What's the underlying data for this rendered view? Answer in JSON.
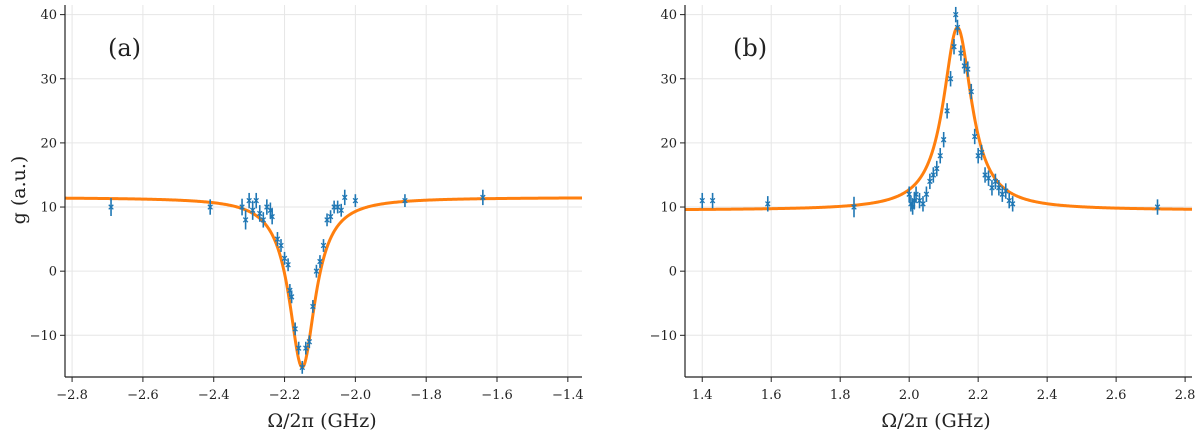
{
  "colors": {
    "data": "#1f77b4",
    "fit": "#ff7f0e"
  },
  "chart_data": [
    {
      "type": "scatter",
      "panel_label": "(a)",
      "xlabel": "Ω/2π (GHz)",
      "ylabel": "g (a.u.)",
      "xlim": [
        -2.82,
        -1.36
      ],
      "ylim": [
        -16.5,
        41.5
      ],
      "xticks": [
        -2.8,
        -2.6,
        -2.4,
        -2.2,
        -2.0,
        -1.8,
        -1.6,
        -1.4
      ],
      "xtick_labels": [
        "−2.8",
        "−2.6",
        "−2.4",
        "−2.2",
        "−2.0",
        "−1.8",
        "−1.6",
        "−1.4"
      ],
      "yticks": [
        -10,
        0,
        10,
        20,
        30,
        40
      ],
      "ytick_labels": [
        "−10",
        "0",
        "10",
        "20",
        "30",
        "40"
      ],
      "grid": true,
      "fit": {
        "shape": "lorentzian-dip",
        "baseline": 11.5,
        "center": -2.15,
        "half_width": 0.045,
        "extremum": -15
      },
      "points": [
        {
          "x": -2.69,
          "y": 10,
          "err": 1.4
        },
        {
          "x": -2.41,
          "y": 10,
          "err": 1.2
        },
        {
          "x": -2.32,
          "y": 10,
          "err": 1.3
        },
        {
          "x": -2.31,
          "y": 8,
          "err": 1.5
        },
        {
          "x": -2.3,
          "y": 11,
          "err": 1.2
        },
        {
          "x": -2.29,
          "y": 9.5,
          "err": 1.5
        },
        {
          "x": -2.28,
          "y": 11,
          "err": 1.2
        },
        {
          "x": -2.27,
          "y": 9,
          "err": 1.3
        },
        {
          "x": -2.26,
          "y": 8,
          "err": 1.2
        },
        {
          "x": -2.25,
          "y": 10,
          "err": 1.2
        },
        {
          "x": -2.24,
          "y": 9.5,
          "err": 1.2
        },
        {
          "x": -2.235,
          "y": 8.5,
          "err": 1.2
        },
        {
          "x": -2.22,
          "y": 5,
          "err": 1.1
        },
        {
          "x": -2.21,
          "y": 4,
          "err": 1.0
        },
        {
          "x": -2.2,
          "y": 2,
          "err": 1.0
        },
        {
          "x": -2.19,
          "y": 1,
          "err": 1.0
        },
        {
          "x": -2.185,
          "y": -3,
          "err": 1.0
        },
        {
          "x": -2.18,
          "y": -4,
          "err": 1.0
        },
        {
          "x": -2.17,
          "y": -9,
          "err": 1.0
        },
        {
          "x": -2.16,
          "y": -12,
          "err": 1.0
        },
        {
          "x": -2.15,
          "y": -15,
          "err": 1.0
        },
        {
          "x": -2.14,
          "y": -12,
          "err": 1.0
        },
        {
          "x": -2.13,
          "y": -11,
          "err": 1.0
        },
        {
          "x": -2.12,
          "y": -5.5,
          "err": 1.0
        },
        {
          "x": -2.11,
          "y": 0,
          "err": 1.0
        },
        {
          "x": -2.1,
          "y": 1.5,
          "err": 1.0
        },
        {
          "x": -2.09,
          "y": 4,
          "err": 1.0
        },
        {
          "x": -2.08,
          "y": 8,
          "err": 1.0
        },
        {
          "x": -2.07,
          "y": 8.5,
          "err": 1.0
        },
        {
          "x": -2.06,
          "y": 10,
          "err": 1.0
        },
        {
          "x": -2.05,
          "y": 10,
          "err": 1.0
        },
        {
          "x": -2.04,
          "y": 9.5,
          "err": 1.0
        },
        {
          "x": -2.03,
          "y": 11.5,
          "err": 1.2
        },
        {
          "x": -2.0,
          "y": 11,
          "err": 1.0
        },
        {
          "x": -1.86,
          "y": 11,
          "err": 1.0
        },
        {
          "x": -1.64,
          "y": 11.5,
          "err": 1.2
        }
      ]
    },
    {
      "type": "scatter",
      "panel_label": "(b)",
      "xlabel": "Ω/2π (GHz)",
      "ylabel": "",
      "xlim": [
        1.35,
        2.82
      ],
      "ylim": [
        -16.5,
        41.5
      ],
      "xticks": [
        1.4,
        1.6,
        1.8,
        2.0,
        2.2,
        2.4,
        2.6,
        2.8
      ],
      "xtick_labels": [
        "1.4",
        "1.6",
        "1.8",
        "2.0",
        "2.2",
        "2.4",
        "2.6",
        "2.8"
      ],
      "yticks": [
        -10,
        0,
        10,
        20,
        30,
        40
      ],
      "ytick_labels": [
        "−10",
        "0",
        "10",
        "20",
        "30",
        "40"
      ],
      "grid": true,
      "fit": {
        "shape": "lorentzian-peak",
        "baseline": 9.5,
        "center": 2.14,
        "half_width": 0.05,
        "extremum": 38
      },
      "points": [
        {
          "x": 1.4,
          "y": 11,
          "err": 1.2
        },
        {
          "x": 1.43,
          "y": 11,
          "err": 1.2
        },
        {
          "x": 1.59,
          "y": 10.5,
          "err": 1.2
        },
        {
          "x": 1.84,
          "y": 10,
          "err": 1.6
        },
        {
          "x": 2.0,
          "y": 12,
          "err": 1.2
        },
        {
          "x": 2.005,
          "y": 10.5,
          "err": 1.2
        },
        {
          "x": 2.01,
          "y": 10,
          "err": 1.2
        },
        {
          "x": 2.015,
          "y": 11,
          "err": 1.2
        },
        {
          "x": 2.02,
          "y": 12,
          "err": 1.2
        },
        {
          "x": 2.03,
          "y": 11,
          "err": 1.2
        },
        {
          "x": 2.04,
          "y": 10.5,
          "err": 1.2
        },
        {
          "x": 2.05,
          "y": 12,
          "err": 1.2
        },
        {
          "x": 2.06,
          "y": 14,
          "err": 1.2
        },
        {
          "x": 2.07,
          "y": 15,
          "err": 1.2
        },
        {
          "x": 2.08,
          "y": 16,
          "err": 1.2
        },
        {
          "x": 2.09,
          "y": 18,
          "err": 1.2
        },
        {
          "x": 2.1,
          "y": 20.5,
          "err": 1.2
        },
        {
          "x": 2.11,
          "y": 25,
          "err": 1.2
        },
        {
          "x": 2.12,
          "y": 30,
          "err": 1.2
        },
        {
          "x": 2.13,
          "y": 35,
          "err": 1.2
        },
        {
          "x": 2.135,
          "y": 40,
          "err": 1.2
        },
        {
          "x": 2.14,
          "y": 38,
          "err": 1.2
        },
        {
          "x": 2.15,
          "y": 34,
          "err": 1.2
        },
        {
          "x": 2.16,
          "y": 32,
          "err": 1.2
        },
        {
          "x": 2.17,
          "y": 31.5,
          "err": 1.2
        },
        {
          "x": 2.18,
          "y": 28,
          "err": 1.2
        },
        {
          "x": 2.19,
          "y": 21,
          "err": 1.2
        },
        {
          "x": 2.2,
          "y": 18,
          "err": 1.2
        },
        {
          "x": 2.21,
          "y": 18.5,
          "err": 1.2
        },
        {
          "x": 2.22,
          "y": 15,
          "err": 1.2
        },
        {
          "x": 2.23,
          "y": 14.5,
          "err": 1.2
        },
        {
          "x": 2.24,
          "y": 13,
          "err": 1.2
        },
        {
          "x": 2.25,
          "y": 14,
          "err": 1.2
        },
        {
          "x": 2.26,
          "y": 13,
          "err": 1.2
        },
        {
          "x": 2.27,
          "y": 12,
          "err": 1.2
        },
        {
          "x": 2.28,
          "y": 12.5,
          "err": 1.2
        },
        {
          "x": 2.29,
          "y": 11,
          "err": 1.2
        },
        {
          "x": 2.3,
          "y": 10.5,
          "err": 1.2
        },
        {
          "x": 2.72,
          "y": 10,
          "err": 1.2
        }
      ]
    }
  ]
}
